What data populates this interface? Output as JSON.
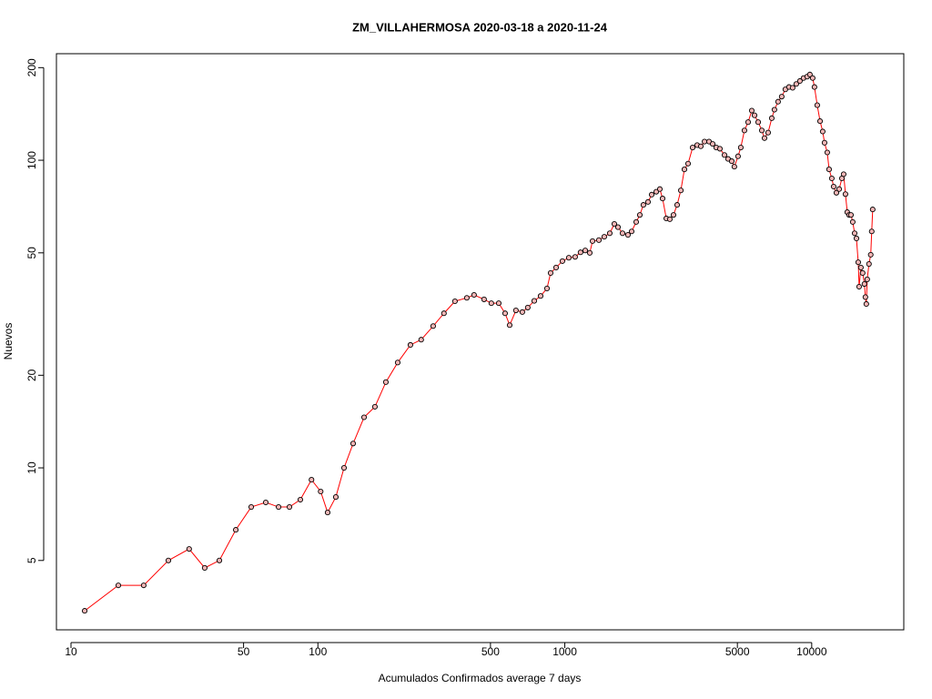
{
  "chart_data": {
    "type": "line",
    "title": "ZM_VILLAHERMOSA 2020-03-18 a 2020-11-24",
    "x_label": "Acumulados Confirmados average  7  days",
    "y_label": "Nuevos",
    "log_x": true,
    "log_y": true,
    "line_color": "#ff0000",
    "marker_color": "#000000",
    "xlim": [
      8.73,
      23600
    ],
    "ylim": [
      2.975,
      222
    ],
    "xticks": [
      10,
      50,
      100,
      500,
      1000,
      5000,
      10000
    ],
    "yticks": [
      5,
      10,
      20,
      50,
      100,
      200
    ],
    "x": [
      11.36,
      15.55,
      19.7,
      24.8,
      30.1,
      34.8,
      39.9,
      46.5,
      53.7,
      61.5,
      69.3,
      76.7,
      84.9,
      94.2,
      102.6,
      109.5,
      118.2,
      127.6,
      138.9,
      153.8,
      170.2,
      188.5,
      210.5,
      237,
      262,
      293,
      324,
      359,
      401,
      429,
      471,
      504,
      540,
      573,
      598,
      634,
      673,
      708,
      752,
      798,
      847,
      876,
      922,
      978,
      1038,
      1101,
      1158,
      1210,
      1262,
      1295,
      1374,
      1445,
      1521,
      1587,
      1642,
      1713,
      1802,
      1865,
      1946,
      2013,
      2081,
      2173,
      2248,
      2346,
      2426,
      2489,
      2576,
      2663,
      2755,
      2851,
      2951,
      3051,
      3157,
      3294,
      3436,
      3555,
      3680,
      3839,
      3971,
      4106,
      4248,
      4433,
      4586,
      4743,
      4861,
      5031,
      5161,
      5340,
      5527,
      5718,
      5867,
      6070,
      6280,
      6439,
      6660,
      6890,
      7064,
      7308,
      7560,
      7821,
      8091,
      8370,
      8660,
      8959,
      9268,
      9588,
      9832,
      10090,
      10260,
      10530,
      10810,
      11080,
      11270,
      11560,
      11760,
      12060,
      12270,
      12590,
      12920,
      13250,
      13470,
      13700,
      13930,
      14180,
      14420,
      14660,
      14920,
      15180,
      15430,
      15560,
      15820,
      16080,
      16350,
      16500,
      16640,
      16780,
      17060,
      17340,
      17500,
      17660
    ],
    "values": [
      3.43,
      4.15,
      4.15,
      5.0,
      5.45,
      4.73,
      5.0,
      6.29,
      7.46,
      7.72,
      7.46,
      7.46,
      7.88,
      9.15,
      8.38,
      7.16,
      8.04,
      10,
      12.0,
      14.6,
      15.8,
      19.0,
      22.0,
      25.1,
      26.1,
      28.9,
      31.8,
      34.8,
      35.7,
      36.5,
      35.3,
      34.3,
      34.3,
      31.8,
      29.1,
      32.5,
      32.1,
      33.2,
      34.9,
      36.2,
      38.3,
      43.0,
      44.8,
      47.0,
      48.2,
      48.5,
      50.2,
      50.9,
      50.0,
      54.6,
      55.0,
      56.4,
      57.9,
      62.1,
      60.6,
      57.9,
      57.2,
      58.7,
      63.0,
      66.4,
      71.6,
      73.2,
      77.3,
      79.0,
      80.6,
      75.1,
      64.7,
      64.3,
      66.4,
      71.6,
      79.8,
      93.4,
      97.5,
      110,
      112,
      111,
      115,
      115,
      113,
      110,
      109,
      104,
      101,
      99.3,
      95.3,
      103,
      110,
      125,
      133,
      145,
      140,
      133,
      125,
      118,
      123,
      137,
      146,
      155,
      161,
      170,
      173,
      172,
      177,
      181,
      185,
      187,
      190,
      185,
      173,
      151,
      134,
      124,
      114,
      106,
      93.4,
      87.3,
      82.1,
      78.4,
      80.6,
      87.3,
      90.1,
      77.6,
      67.8,
      66.4,
      66.4,
      63.0,
      57.9,
      55.7,
      46.6,
      38.8,
      44.8,
      43.0,
      39.6,
      35.9,
      34.1,
      41.0,
      46.0,
      49.3,
      58.7,
      69.2
    ]
  }
}
